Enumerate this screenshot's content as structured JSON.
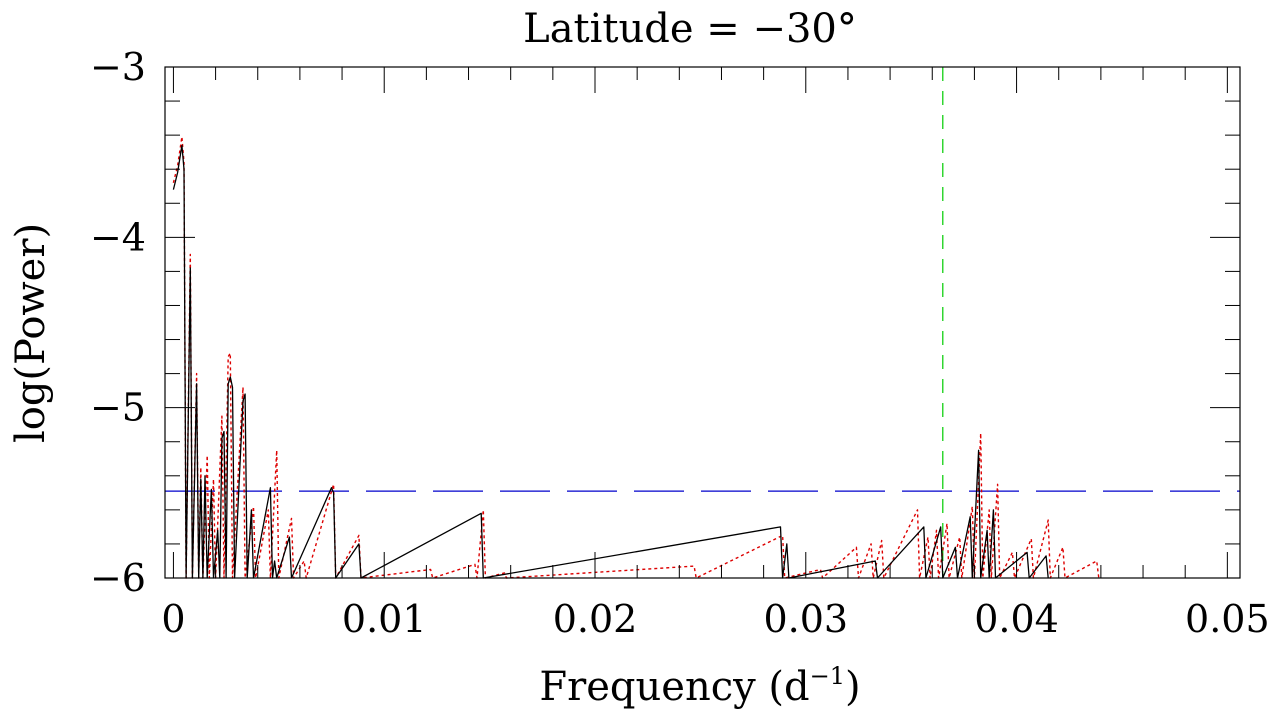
{
  "chart_data": {
    "type": "line",
    "title": "Latitude = −30°",
    "xlabel": "Frequency (d",
    "xlabel_superscript": "−1",
    "xlabel_suffix": ")",
    "ylabel": "log(Power)",
    "xlim": [
      -0.0004,
      0.0506
    ],
    "ylim": [
      -6,
      -3
    ],
    "xticks": [
      {
        "value": 0,
        "label": "0"
      },
      {
        "value": 0.01,
        "label": "0.01"
      },
      {
        "value": 0.02,
        "label": "0.02"
      },
      {
        "value": 0.03,
        "label": "0.03"
      },
      {
        "value": 0.04,
        "label": "0.04"
      },
      {
        "value": 0.05,
        "label": "0.05"
      }
    ],
    "yticks": [
      {
        "value": -3,
        "label": "−3"
      },
      {
        "value": -4,
        "label": "−4"
      },
      {
        "value": -5,
        "label": "−5"
      },
      {
        "value": -6,
        "label": "−6"
      }
    ],
    "x_minor_step": 0.002,
    "y_minor_step": 0.2,
    "grid": false,
    "reference_lines": [
      {
        "orientation": "horizontal",
        "value": -5.49,
        "color": "#0000cc",
        "style": "long-dash"
      },
      {
        "orientation": "vertical",
        "value": 0.0365,
        "color": "#00cc00",
        "style": "dash"
      }
    ],
    "series": [
      {
        "color": "#000000",
        "style": "solid",
        "points": [
          [
            0.0,
            -3.72
          ],
          [
            0.0002,
            -3.62
          ],
          [
            0.0004,
            -3.46
          ],
          [
            0.0005,
            -3.6
          ],
          [
            0.0006,
            -6
          ],
          [
            0.0008,
            -4.18
          ],
          [
            0.0009,
            -6
          ],
          [
            0.0011,
            -4.86
          ],
          [
            0.0012,
            -6
          ],
          [
            0.0013,
            -5.42
          ],
          [
            0.0014,
            -6
          ],
          [
            0.0015,
            -5.4
          ],
          [
            0.0016,
            -6
          ],
          [
            0.0018,
            -5.48
          ],
          [
            0.0019,
            -6
          ],
          [
            0.0021,
            -5.72
          ],
          [
            0.0022,
            -6
          ],
          [
            0.0023,
            -5.18
          ],
          [
            0.0024,
            -5.14
          ],
          [
            0.0025,
            -6
          ],
          [
            0.0026,
            -4.86
          ],
          [
            0.0027,
            -4.82
          ],
          [
            0.0028,
            -4.88
          ],
          [
            0.0029,
            -6
          ],
          [
            0.0033,
            -4.96
          ],
          [
            0.0034,
            -4.92
          ],
          [
            0.0035,
            -6
          ],
          [
            0.0037,
            -5.6
          ],
          [
            0.0038,
            -6
          ],
          [
            0.0046,
            -5.47
          ],
          [
            0.0047,
            -6
          ],
          [
            0.0048,
            -5.9
          ],
          [
            0.0049,
            -6
          ],
          [
            0.0055,
            -5.76
          ],
          [
            0.0056,
            -6
          ],
          [
            0.0075,
            -5.47
          ],
          [
            0.0076,
            -5.5
          ],
          [
            0.0077,
            -6
          ],
          [
            0.0088,
            -5.8
          ],
          [
            0.0089,
            -6
          ],
          [
            0.0146,
            -5.62
          ],
          [
            0.0147,
            -6
          ],
          [
            0.0288,
            -5.7
          ],
          [
            0.0289,
            -6
          ],
          [
            0.0291,
            -5.8
          ],
          [
            0.0292,
            -6
          ],
          [
            0.0333,
            -5.9
          ],
          [
            0.0334,
            -6
          ],
          [
            0.0356,
            -5.7
          ],
          [
            0.0357,
            -6
          ],
          [
            0.0364,
            -5.7
          ],
          [
            0.0365,
            -6
          ],
          [
            0.0371,
            -5.82
          ],
          [
            0.0372,
            -6
          ],
          [
            0.0378,
            -5.64
          ],
          [
            0.0379,
            -6
          ],
          [
            0.0382,
            -5.25
          ],
          [
            0.0383,
            -6
          ],
          [
            0.0386,
            -5.72
          ],
          [
            0.0387,
            -6
          ],
          [
            0.0389,
            -5.6
          ],
          [
            0.039,
            -6
          ],
          [
            0.0405,
            -5.85
          ],
          [
            0.0406,
            -6
          ],
          [
            0.0414,
            -5.87
          ],
          [
            0.0415,
            -6
          ]
        ]
      },
      {
        "color": "#dd0000",
        "style": "dotted",
        "points": [
          [
            0.0,
            -3.68
          ],
          [
            0.0002,
            -3.58
          ],
          [
            0.0004,
            -3.41
          ],
          [
            0.0005,
            -3.56
          ],
          [
            0.0006,
            -6
          ],
          [
            0.0008,
            -4.1
          ],
          [
            0.0009,
            -6
          ],
          [
            0.0011,
            -4.8
          ],
          [
            0.0012,
            -6
          ],
          [
            0.0013,
            -5.35
          ],
          [
            0.0014,
            -6
          ],
          [
            0.0016,
            -5.28
          ],
          [
            0.0017,
            -6
          ],
          [
            0.0019,
            -5.42
          ],
          [
            0.002,
            -6
          ],
          [
            0.0023,
            -5.05
          ],
          [
            0.0024,
            -6
          ],
          [
            0.0026,
            -4.7
          ],
          [
            0.0027,
            -4.68
          ],
          [
            0.0028,
            -6
          ],
          [
            0.0033,
            -4.88
          ],
          [
            0.0034,
            -6
          ],
          [
            0.0038,
            -5.58
          ],
          [
            0.0039,
            -6
          ],
          [
            0.0045,
            -5.6
          ],
          [
            0.0046,
            -6
          ],
          [
            0.0049,
            -5.25
          ],
          [
            0.005,
            -6
          ],
          [
            0.0056,
            -5.65
          ],
          [
            0.0057,
            -6
          ],
          [
            0.0062,
            -5.9
          ],
          [
            0.0063,
            -6
          ],
          [
            0.0076,
            -5.45
          ],
          [
            0.0077,
            -6
          ],
          [
            0.0088,
            -5.75
          ],
          [
            0.0089,
            -6
          ],
          [
            0.0122,
            -5.95
          ],
          [
            0.0123,
            -6
          ],
          [
            0.0143,
            -5.92
          ],
          [
            0.0144,
            -6
          ],
          [
            0.0147,
            -5.6
          ],
          [
            0.0148,
            -6
          ],
          [
            0.0157,
            -5.97
          ],
          [
            0.0158,
            -6
          ],
          [
            0.0247,
            -5.93
          ],
          [
            0.0248,
            -6
          ],
          [
            0.0289,
            -5.75
          ],
          [
            0.029,
            -6
          ],
          [
            0.0307,
            -5.95
          ],
          [
            0.0308,
            -6
          ],
          [
            0.0324,
            -5.82
          ],
          [
            0.0325,
            -6
          ],
          [
            0.0331,
            -5.8
          ],
          [
            0.0332,
            -6
          ],
          [
            0.0336,
            -5.78
          ],
          [
            0.0337,
            -6
          ],
          [
            0.0353,
            -5.6
          ],
          [
            0.0354,
            -6
          ],
          [
            0.0358,
            -5.76
          ],
          [
            0.0359,
            -6
          ],
          [
            0.0362,
            -5.72
          ],
          [
            0.0363,
            -6
          ],
          [
            0.0367,
            -5.68
          ],
          [
            0.0368,
            -6
          ],
          [
            0.0373,
            -5.76
          ],
          [
            0.0374,
            -6
          ],
          [
            0.0379,
            -5.58
          ],
          [
            0.038,
            -6
          ],
          [
            0.0383,
            -5.15
          ],
          [
            0.0384,
            -6
          ],
          [
            0.0387,
            -5.6
          ],
          [
            0.0388,
            -6
          ],
          [
            0.0391,
            -5.45
          ],
          [
            0.0392,
            -6
          ],
          [
            0.0398,
            -5.85
          ],
          [
            0.0399,
            -6
          ],
          [
            0.0407,
            -5.77
          ],
          [
            0.0408,
            -6
          ],
          [
            0.0415,
            -5.66
          ],
          [
            0.0416,
            -6
          ],
          [
            0.0422,
            -5.82
          ],
          [
            0.0423,
            -6
          ],
          [
            0.0438,
            -5.9
          ],
          [
            0.0439,
            -6
          ]
        ]
      }
    ]
  }
}
